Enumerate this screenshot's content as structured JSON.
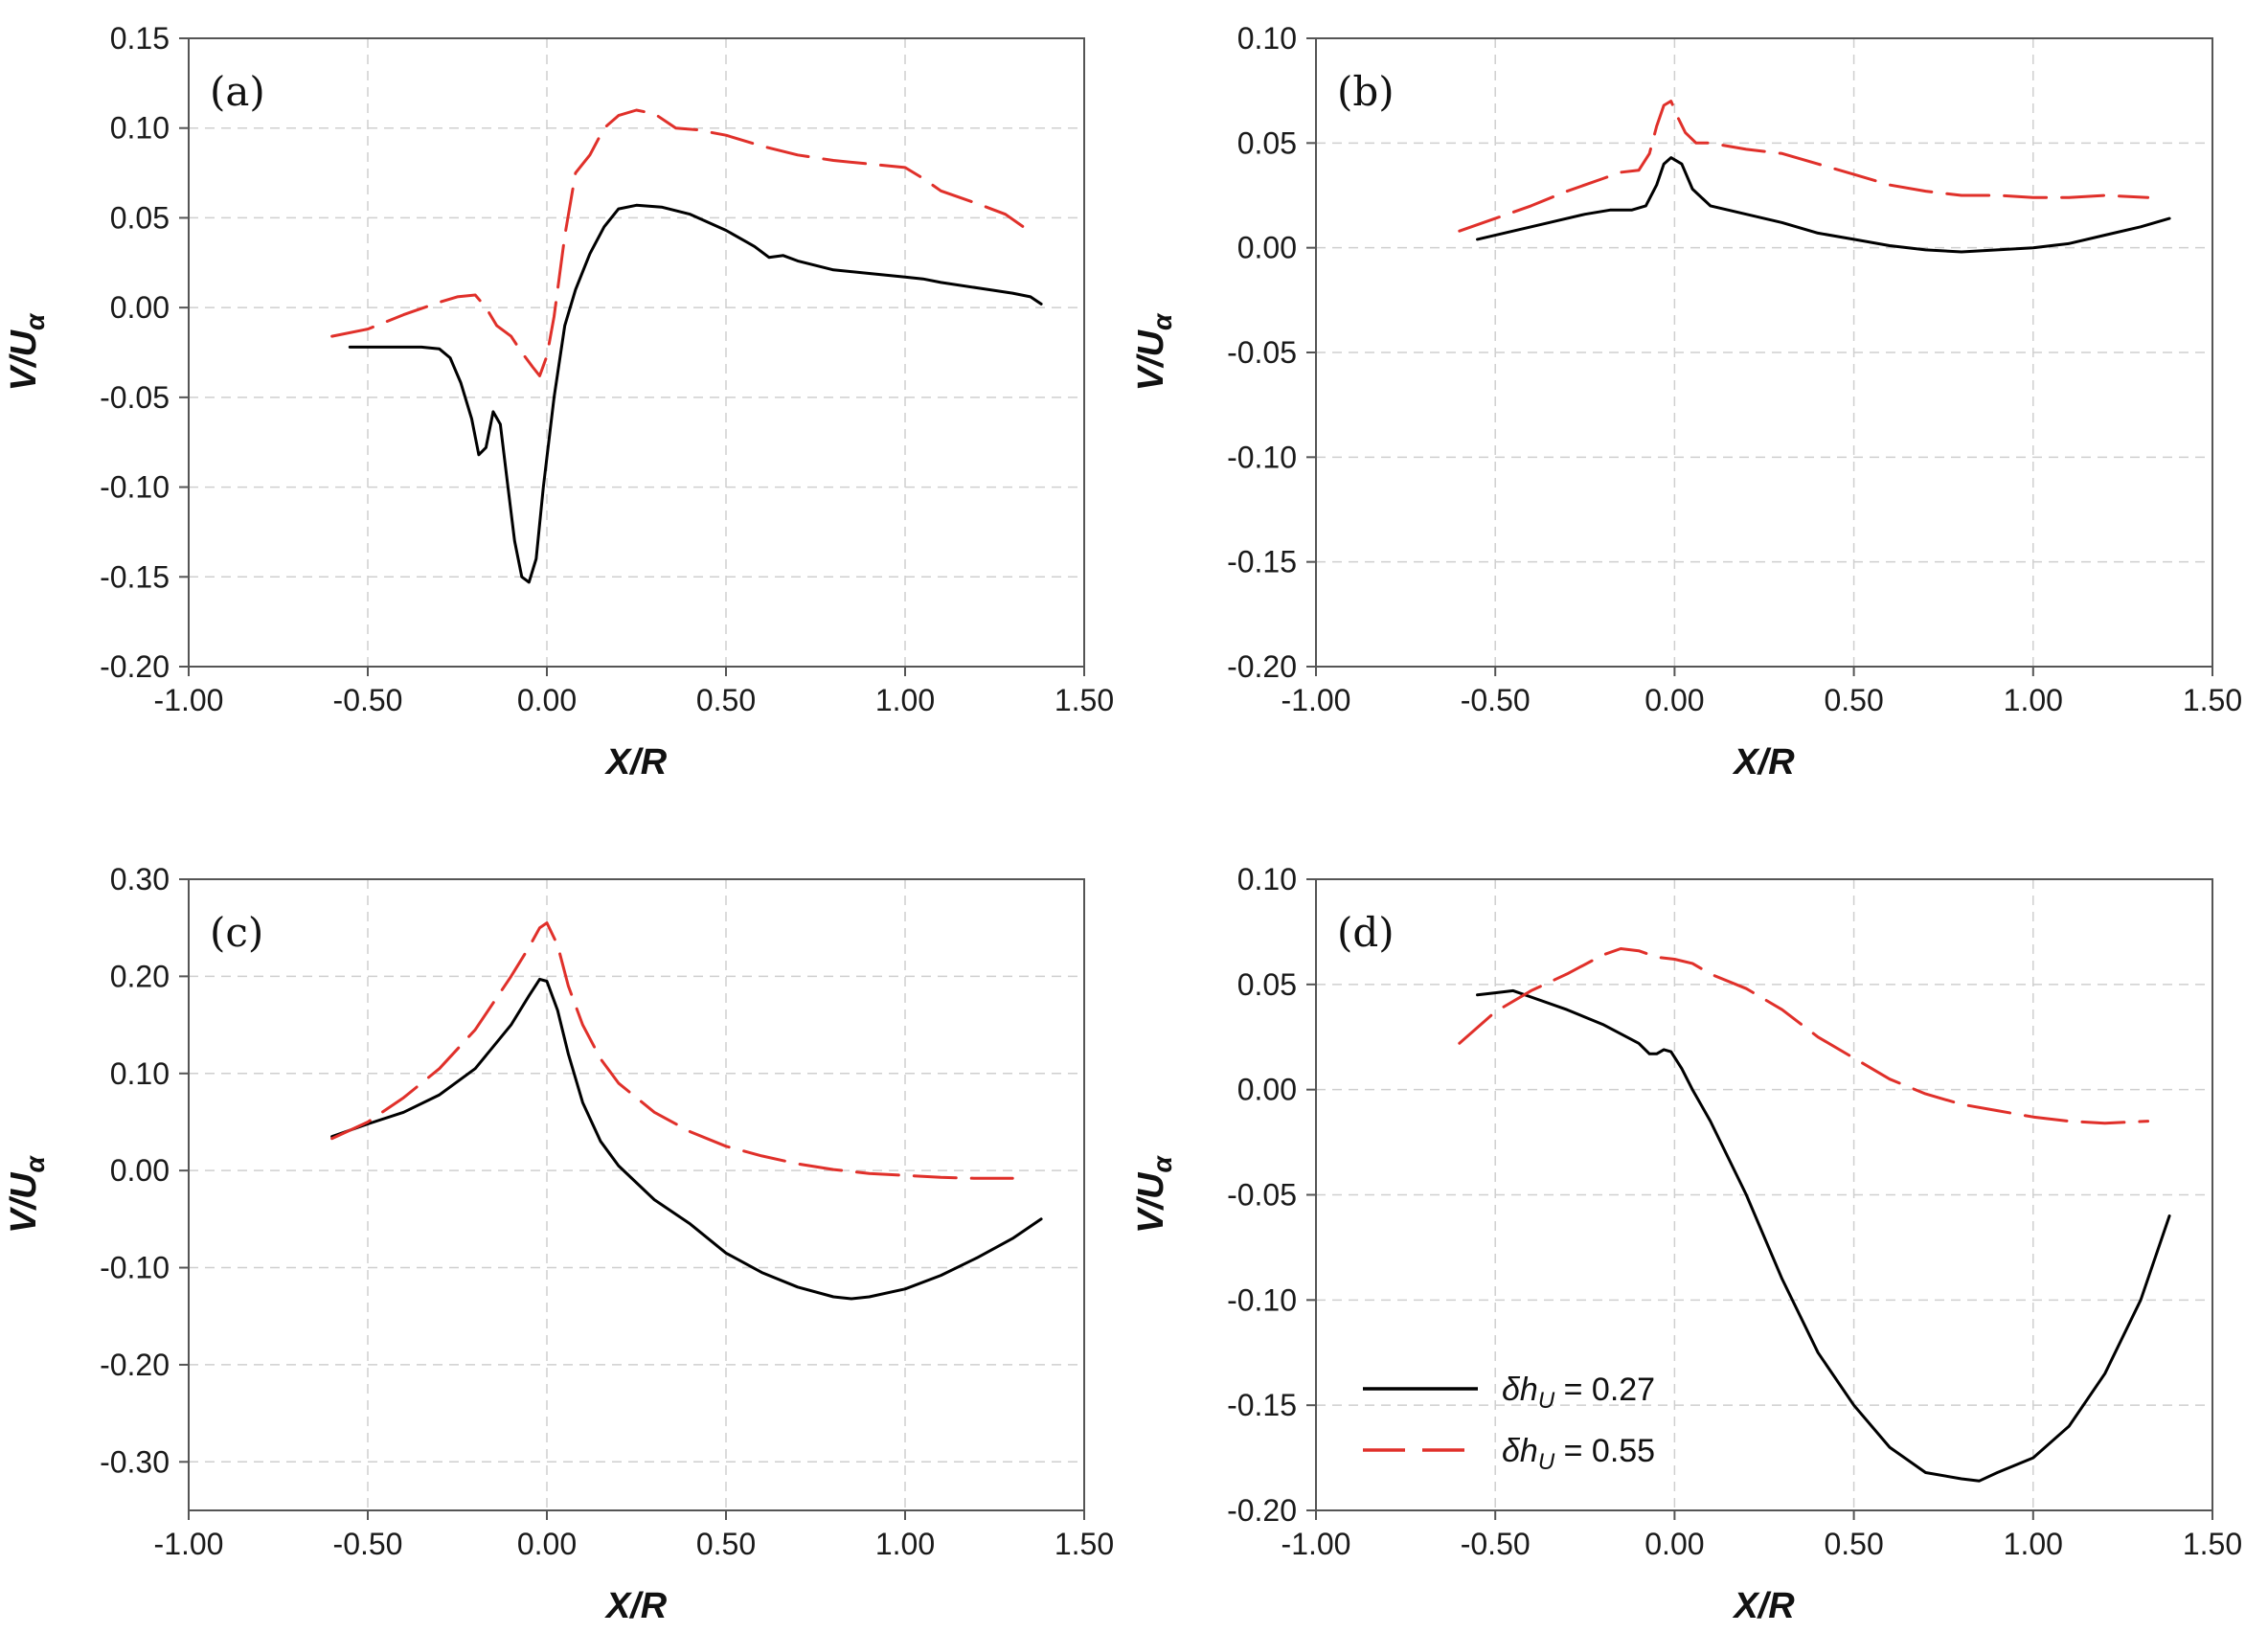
{
  "figure": {
    "legend": {
      "entries": [
        {
          "label": "δh",
          "sub": "U",
          "suffix": " = 0.27",
          "color": "#000000",
          "dash": "solid"
        },
        {
          "label": "δh",
          "sub": "U",
          "suffix": " = 0.55",
          "color": "#e0302a",
          "dash": "dashed"
        }
      ]
    }
  },
  "chart_data": [
    {
      "type": "line",
      "panel_label": "(a)",
      "xlabel": "X/R",
      "ylabel": {
        "main": "V/U",
        "sub": "α"
      },
      "xlim": [
        -1.0,
        1.5
      ],
      "ylim": [
        -0.2,
        0.15
      ],
      "xticks": [
        -1.0,
        -0.5,
        0.0,
        0.5,
        1.0,
        1.5
      ],
      "xtick_labels": [
        "-1.00",
        "-0.50",
        "0.00",
        "0.50",
        "1.00",
        "1.50"
      ],
      "yticks": [
        -0.2,
        -0.15,
        -0.1,
        -0.05,
        0.0,
        0.05,
        0.1,
        0.15
      ],
      "ytick_labels": [
        "-0.20",
        "-0.15",
        "-0.10",
        "-0.05",
        "0.00",
        "0.05",
        "0.10",
        "0.15"
      ],
      "series": [
        {
          "name": "δhU = 0.27",
          "color": "#000000",
          "dash": "solid",
          "x": [
            -0.55,
            -0.45,
            -0.35,
            -0.3,
            -0.27,
            -0.24,
            -0.21,
            -0.19,
            -0.17,
            -0.15,
            -0.13,
            -0.11,
            -0.09,
            -0.07,
            -0.05,
            -0.03,
            -0.01,
            0.02,
            0.05,
            0.08,
            0.12,
            0.16,
            0.2,
            0.25,
            0.32,
            0.4,
            0.5,
            0.58,
            0.62,
            0.66,
            0.7,
            0.8,
            0.9,
            1.0,
            1.05,
            1.1,
            1.2,
            1.3,
            1.35,
            1.38
          ],
          "y": [
            -0.022,
            -0.022,
            -0.022,
            -0.023,
            -0.028,
            -0.042,
            -0.062,
            -0.082,
            -0.078,
            -0.058,
            -0.065,
            -0.098,
            -0.13,
            -0.15,
            -0.153,
            -0.14,
            -0.1,
            -0.05,
            -0.01,
            0.01,
            0.03,
            0.045,
            0.055,
            0.057,
            0.056,
            0.052,
            0.043,
            0.034,
            0.028,
            0.029,
            0.026,
            0.021,
            0.019,
            0.017,
            0.016,
            0.014,
            0.011,
            0.008,
            0.006,
            0.002
          ]
        },
        {
          "name": "δhU = 0.55",
          "color": "#e0302a",
          "dash": "dashed",
          "x": [
            -0.6,
            -0.5,
            -0.4,
            -0.3,
            -0.25,
            -0.2,
            -0.17,
            -0.14,
            -0.1,
            -0.07,
            -0.04,
            -0.02,
            0.0,
            0.02,
            0.05,
            0.08,
            0.12,
            0.16,
            0.2,
            0.25,
            0.3,
            0.36,
            0.42,
            0.5,
            0.6,
            0.7,
            0.8,
            0.9,
            1.0,
            1.05,
            1.1,
            1.2,
            1.28,
            1.33
          ],
          "y": [
            -0.016,
            -0.012,
            -0.004,
            0.003,
            0.006,
            0.007,
            0.0,
            -0.01,
            -0.016,
            -0.025,
            -0.033,
            -0.038,
            -0.027,
            -0.005,
            0.04,
            0.075,
            0.085,
            0.1,
            0.107,
            0.11,
            0.108,
            0.1,
            0.099,
            0.096,
            0.09,
            0.085,
            0.082,
            0.08,
            0.078,
            0.072,
            0.065,
            0.058,
            0.052,
            0.045
          ]
        }
      ]
    },
    {
      "type": "line",
      "panel_label": "(b)",
      "xlabel": "X/R",
      "ylabel": {
        "main": "V/U",
        "sub": "α"
      },
      "xlim": [
        -1.0,
        1.5
      ],
      "ylim": [
        -0.2,
        0.1
      ],
      "xticks": [
        -1.0,
        -0.5,
        0.0,
        0.5,
        1.0,
        1.5
      ],
      "xtick_labels": [
        "-1.00",
        "-0.50",
        "0.00",
        "0.50",
        "1.00",
        "1.50"
      ],
      "yticks": [
        -0.2,
        -0.15,
        -0.1,
        -0.05,
        0.0,
        0.05,
        0.1
      ],
      "ytick_labels": [
        "-0.20",
        "-0.15",
        "-0.10",
        "-0.05",
        "0.00",
        "0.05",
        "0.10"
      ],
      "series": [
        {
          "name": "δhU = 0.27",
          "color": "#000000",
          "dash": "solid",
          "x": [
            -0.55,
            -0.45,
            -0.35,
            -0.25,
            -0.18,
            -0.12,
            -0.08,
            -0.05,
            -0.03,
            -0.01,
            0.02,
            0.05,
            0.1,
            0.2,
            0.3,
            0.4,
            0.5,
            0.6,
            0.7,
            0.8,
            0.9,
            1.0,
            1.1,
            1.2,
            1.3,
            1.38
          ],
          "y": [
            0.004,
            0.008,
            0.012,
            0.016,
            0.018,
            0.018,
            0.02,
            0.03,
            0.04,
            0.043,
            0.04,
            0.028,
            0.02,
            0.016,
            0.012,
            0.007,
            0.004,
            0.001,
            -0.001,
            -0.002,
            -0.001,
            0.0,
            0.002,
            0.006,
            0.01,
            0.014
          ]
        },
        {
          "name": "δhU = 0.55",
          "color": "#e0302a",
          "dash": "dashed",
          "x": [
            -0.6,
            -0.5,
            -0.4,
            -0.3,
            -0.2,
            -0.15,
            -0.1,
            -0.07,
            -0.05,
            -0.03,
            -0.01,
            0.01,
            0.03,
            0.06,
            0.1,
            0.2,
            0.3,
            0.4,
            0.5,
            0.6,
            0.7,
            0.8,
            0.9,
            1.0,
            1.1,
            1.2,
            1.32
          ],
          "y": [
            0.008,
            0.014,
            0.02,
            0.027,
            0.033,
            0.036,
            0.037,
            0.045,
            0.058,
            0.068,
            0.07,
            0.062,
            0.055,
            0.05,
            0.05,
            0.047,
            0.045,
            0.04,
            0.035,
            0.03,
            0.027,
            0.025,
            0.025,
            0.024,
            0.024,
            0.025,
            0.024
          ]
        }
      ]
    },
    {
      "type": "line",
      "panel_label": "(c)",
      "xlabel": "X/R",
      "ylabel": {
        "main": "V/U",
        "sub": "α"
      },
      "xlim": [
        -1.0,
        1.5
      ],
      "ylim": [
        -0.35,
        0.3
      ],
      "xticks": [
        -1.0,
        -0.5,
        0.0,
        0.5,
        1.0,
        1.5
      ],
      "xtick_labels": [
        "-1.00",
        "-0.50",
        "0.00",
        "0.50",
        "1.00",
        "1.50"
      ],
      "yticks": [
        -0.3,
        -0.2,
        -0.1,
        0.0,
        0.1,
        0.2,
        0.3
      ],
      "ytick_labels": [
        "-0.30",
        "-0.20",
        "-0.10",
        "0.00",
        "0.10",
        "0.20",
        "0.30"
      ],
      "series": [
        {
          "name": "δhU = 0.27",
          "color": "#000000",
          "dash": "solid",
          "x": [
            -0.6,
            -0.5,
            -0.4,
            -0.3,
            -0.2,
            -0.1,
            -0.05,
            -0.02,
            0.0,
            0.03,
            0.06,
            0.1,
            0.15,
            0.2,
            0.3,
            0.4,
            0.5,
            0.6,
            0.7,
            0.8,
            0.85,
            0.9,
            1.0,
            1.1,
            1.2,
            1.3,
            1.38
          ],
          "y": [
            0.035,
            0.048,
            0.06,
            0.078,
            0.105,
            0.15,
            0.18,
            0.197,
            0.195,
            0.165,
            0.12,
            0.07,
            0.03,
            0.005,
            -0.03,
            -0.055,
            -0.085,
            -0.105,
            -0.12,
            -0.13,
            -0.132,
            -0.13,
            -0.122,
            -0.108,
            -0.09,
            -0.07,
            -0.05
          ]
        },
        {
          "name": "δhU = 0.55",
          "color": "#e0302a",
          "dash": "dashed",
          "x": [
            -0.6,
            -0.5,
            -0.4,
            -0.3,
            -0.2,
            -0.1,
            -0.05,
            -0.02,
            0.0,
            0.03,
            0.06,
            0.1,
            0.15,
            0.2,
            0.3,
            0.4,
            0.5,
            0.6,
            0.7,
            0.8,
            0.9,
            1.0,
            1.1,
            1.2,
            1.3
          ],
          "y": [
            0.033,
            0.05,
            0.075,
            0.105,
            0.145,
            0.2,
            0.23,
            0.25,
            0.255,
            0.232,
            0.19,
            0.15,
            0.115,
            0.09,
            0.06,
            0.04,
            0.025,
            0.015,
            0.007,
            0.001,
            -0.003,
            -0.005,
            -0.007,
            -0.008,
            -0.008
          ]
        }
      ]
    },
    {
      "type": "line",
      "panel_label": "(d)",
      "xlabel": "X/R",
      "ylabel": {
        "main": "V/U",
        "sub": "α"
      },
      "xlim": [
        -1.0,
        1.5
      ],
      "ylim": [
        -0.2,
        0.1
      ],
      "xticks": [
        -1.0,
        -0.5,
        0.0,
        0.5,
        1.0,
        1.5
      ],
      "xtick_labels": [
        "-1.00",
        "-0.50",
        "0.00",
        "0.50",
        "1.00",
        "1.50"
      ],
      "yticks": [
        -0.2,
        -0.15,
        -0.1,
        -0.05,
        0.0,
        0.05,
        0.1
      ],
      "ytick_labels": [
        "-0.20",
        "-0.15",
        "-0.10",
        "-0.05",
        "0.00",
        "0.05",
        "0.10"
      ],
      "series": [
        {
          "name": "δhU = 0.27",
          "color": "#000000",
          "dash": "solid",
          "x": [
            -0.55,
            -0.5,
            -0.45,
            -0.4,
            -0.3,
            -0.2,
            -0.1,
            -0.07,
            -0.05,
            -0.03,
            -0.01,
            0.02,
            0.05,
            0.1,
            0.2,
            0.3,
            0.4,
            0.5,
            0.6,
            0.7,
            0.8,
            0.85,
            0.9,
            1.0,
            1.1,
            1.2,
            1.3,
            1.38
          ],
          "y": [
            0.045,
            0.046,
            0.047,
            0.044,
            0.038,
            0.031,
            0.022,
            0.017,
            0.017,
            0.019,
            0.018,
            0.01,
            0.0,
            -0.015,
            -0.05,
            -0.09,
            -0.125,
            -0.15,
            -0.17,
            -0.182,
            -0.185,
            -0.186,
            -0.182,
            -0.175,
            -0.16,
            -0.135,
            -0.1,
            -0.06
          ]
        },
        {
          "name": "δhU = 0.55",
          "color": "#e0302a",
          "dash": "dashed",
          "x": [
            -0.6,
            -0.5,
            -0.4,
            -0.3,
            -0.2,
            -0.15,
            -0.1,
            -0.05,
            0.0,
            0.05,
            0.1,
            0.2,
            0.3,
            0.4,
            0.5,
            0.6,
            0.7,
            0.8,
            0.9,
            1.0,
            1.1,
            1.2,
            1.32
          ],
          "y": [
            0.022,
            0.037,
            0.047,
            0.055,
            0.064,
            0.067,
            0.066,
            0.063,
            0.062,
            0.06,
            0.055,
            0.048,
            0.038,
            0.025,
            0.015,
            0.005,
            -0.002,
            -0.007,
            -0.01,
            -0.013,
            -0.015,
            -0.016,
            -0.015
          ]
        }
      ]
    }
  ]
}
